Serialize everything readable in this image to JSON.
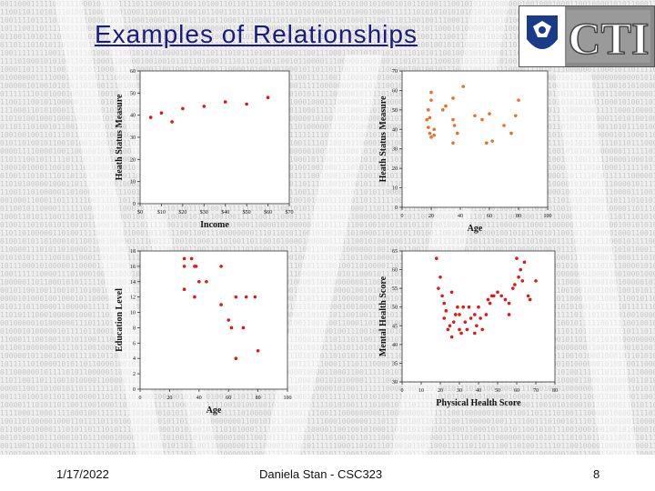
{
  "slide": {
    "title": "Examples of Relationships",
    "footer": {
      "date": "1/17/2022",
      "author": "Daniela Stan -  CSC323",
      "page": "8"
    },
    "logo": {
      "text": "CTI",
      "icon": "university-seal-icon"
    },
    "colors": {
      "title": "#1a1a80",
      "orange": "#e8702a",
      "red": "#e01818"
    }
  },
  "chart_data": [
    {
      "type": "scatter",
      "xlabel": "Income",
      "ylabel": "Heath Status Measure",
      "xticks": [
        "$0",
        "$10",
        "$20",
        "$30",
        "$40",
        "$50",
        "$60",
        "$70"
      ],
      "yticks": [
        "0",
        "10",
        "20",
        "30",
        "40",
        "50",
        "60"
      ],
      "xlim": [
        0,
        70
      ],
      "ylim": [
        0,
        60
      ],
      "color": "#e01818",
      "points": [
        [
          5,
          39
        ],
        [
          10,
          41
        ],
        [
          15,
          37
        ],
        [
          20,
          43
        ],
        [
          30,
          44
        ],
        [
          40,
          46
        ],
        [
          50,
          45
        ],
        [
          60,
          48
        ]
      ]
    },
    {
      "type": "scatter",
      "xlabel": "Age",
      "ylabel": "Heath Status Measure",
      "xticks": [
        "0",
        "20",
        "40",
        "60",
        "80",
        "100"
      ],
      "yticks": [
        "0",
        "10",
        "20",
        "30",
        "40",
        "50",
        "60",
        "70"
      ],
      "xlim": [
        0,
        100
      ],
      "ylim": [
        0,
        70
      ],
      "color": "#e8702a",
      "points": [
        [
          20,
          59
        ],
        [
          20,
          55
        ],
        [
          18,
          50
        ],
        [
          19,
          46
        ],
        [
          17,
          45
        ],
        [
          18,
          41
        ],
        [
          19,
          38
        ],
        [
          20,
          36
        ],
        [
          22,
          37
        ],
        [
          22,
          40
        ],
        [
          28,
          50
        ],
        [
          30,
          52
        ],
        [
          35,
          56
        ],
        [
          35,
          45
        ],
        [
          36,
          42
        ],
        [
          35,
          33
        ],
        [
          38,
          38
        ],
        [
          42,
          62
        ],
        [
          50,
          47
        ],
        [
          55,
          45
        ],
        [
          60,
          48
        ],
        [
          58,
          33
        ],
        [
          62,
          34
        ],
        [
          70,
          42
        ],
        [
          75,
          38
        ],
        [
          78,
          47
        ],
        [
          80,
          55
        ]
      ]
    },
    {
      "type": "scatter",
      "xlabel": "Age",
      "ylabel": "Education Level",
      "xticks": [
        "0",
        "20",
        "40",
        "60",
        "80",
        "100"
      ],
      "yticks": [
        "0",
        "2",
        "4",
        "6",
        "8",
        "10",
        "12",
        "14",
        "16",
        "18"
      ],
      "xlim": [
        0,
        100
      ],
      "ylim": [
        0,
        18
      ],
      "color": "#e01818",
      "points": [
        [
          30,
          17
        ],
        [
          30,
          16
        ],
        [
          35,
          17
        ],
        [
          37,
          16
        ],
        [
          38,
          16
        ],
        [
          40,
          14
        ],
        [
          45,
          14
        ],
        [
          30,
          13
        ],
        [
          37,
          12
        ],
        [
          55,
          16
        ],
        [
          55,
          11
        ],
        [
          65,
          12
        ],
        [
          60,
          9
        ],
        [
          62,
          8
        ],
        [
          70,
          8
        ],
        [
          72,
          12
        ],
        [
          78,
          12
        ],
        [
          65,
          4
        ],
        [
          80,
          5
        ]
      ]
    },
    {
      "type": "scatter",
      "xlabel": "Physical Health Score",
      "ylabel": "Mental Health Score",
      "xticks": [
        "0",
        "10",
        "20",
        "30",
        "40",
        "50",
        "60",
        "70",
        "80"
      ],
      "yticks": [
        "30",
        "35",
        "40",
        "45",
        "50",
        "55",
        "60",
        "65"
      ],
      "xlim": [
        0,
        80
      ],
      "ylim": [
        30,
        65
      ],
      "color": "#e01818",
      "points": [
        [
          18,
          63
        ],
        [
          20,
          58
        ],
        [
          19,
          55
        ],
        [
          21,
          53
        ],
        [
          22,
          51
        ],
        [
          23,
          49
        ],
        [
          22,
          47
        ],
        [
          24,
          44
        ],
        [
          25,
          45
        ],
        [
          26,
          42
        ],
        [
          26,
          54
        ],
        [
          27,
          46
        ],
        [
          28,
          48
        ],
        [
          29,
          50
        ],
        [
          30,
          44
        ],
        [
          30,
          48
        ],
        [
          31,
          43
        ],
        [
          32,
          50
        ],
        [
          33,
          46
        ],
        [
          34,
          44
        ],
        [
          35,
          50
        ],
        [
          36,
          47
        ],
        [
          38,
          43
        ],
        [
          38,
          48
        ],
        [
          39,
          45
        ],
        [
          40,
          50
        ],
        [
          41,
          47
        ],
        [
          42,
          44
        ],
        [
          44,
          48
        ],
        [
          45,
          52
        ],
        [
          46,
          51
        ],
        [
          47,
          53
        ],
        [
          48,
          53
        ],
        [
          50,
          54
        ],
        [
          52,
          53
        ],
        [
          54,
          52
        ],
        [
          56,
          48
        ],
        [
          56,
          51
        ],
        [
          58,
          55
        ],
        [
          59,
          56
        ],
        [
          60,
          63
        ],
        [
          61,
          58
        ],
        [
          62,
          60
        ],
        [
          63,
          57
        ],
        [
          64,
          62
        ],
        [
          66,
          53
        ],
        [
          67,
          52
        ],
        [
          70,
          57
        ]
      ]
    }
  ]
}
